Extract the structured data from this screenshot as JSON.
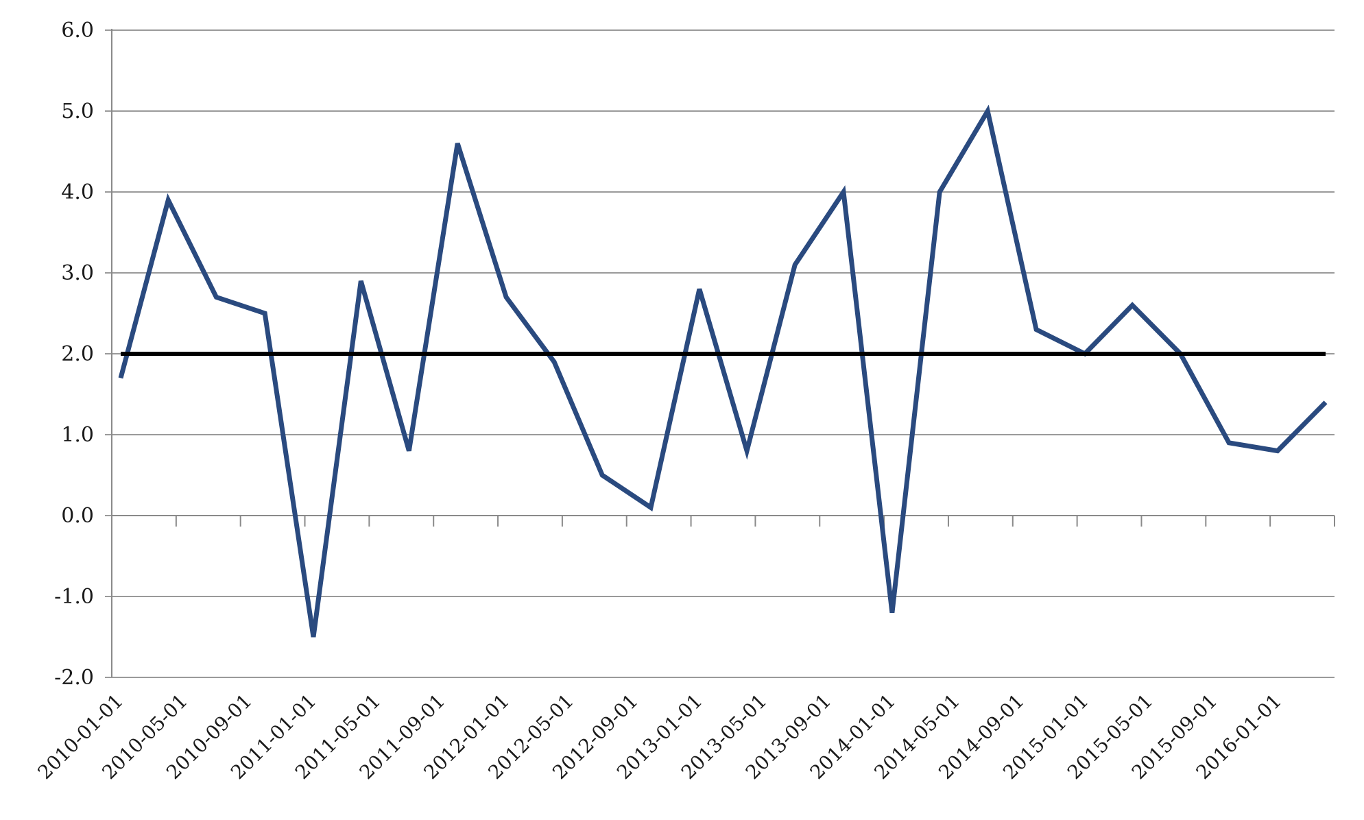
{
  "chart_data": {
    "type": "line",
    "title": "",
    "xlabel": "",
    "ylabel": "",
    "ylim": [
      -2.0,
      6.0
    ],
    "yticks": [
      "-2.0",
      "-1.0",
      "0.0",
      "1.0",
      "2.0",
      "3.0",
      "4.0",
      "5.0",
      "6.0"
    ],
    "x_tick_labels": [
      "2010-01-01",
      "2010-05-01",
      "2010-09-01",
      "2011-01-01",
      "2011-05-01",
      "2011-09-01",
      "2012-01-01",
      "2012-05-01",
      "2012-09-01",
      "2013-01-01",
      "2013-05-01",
      "2013-09-01",
      "2014-01-01",
      "2014-05-01",
      "2014-09-01",
      "2015-01-01",
      "2015-05-01",
      "2015-09-01",
      "2016-01-01"
    ],
    "grid": true,
    "legend": "none",
    "series": [
      {
        "color": "#2a4a7f",
        "x": [
          "2010-01-01",
          "2010-04-01",
          "2010-07-01",
          "2010-10-01",
          "2011-01-01",
          "2011-04-01",
          "2011-07-01",
          "2011-10-01",
          "2012-01-01",
          "2012-04-01",
          "2012-07-01",
          "2012-10-01",
          "2013-01-01",
          "2013-04-01",
          "2013-07-01",
          "2013-10-01",
          "2014-01-01",
          "2014-04-01",
          "2014-07-01",
          "2014-10-01",
          "2015-01-01",
          "2015-04-01",
          "2015-07-01",
          "2015-10-01",
          "2016-01-01",
          "2016-04-01"
        ],
        "values": [
          1.7,
          3.9,
          2.7,
          2.5,
          -1.5,
          2.9,
          0.8,
          4.6,
          2.7,
          1.9,
          0.5,
          0.1,
          2.8,
          0.8,
          3.1,
          4.0,
          -1.2,
          4.0,
          5.0,
          2.3,
          2.0,
          2.6,
          2.0,
          0.9,
          0.8,
          1.4
        ]
      },
      {
        "color": "#000000",
        "x": [
          "2010-01-01",
          "2016-04-01"
        ],
        "values": [
          2.0,
          2.0
        ]
      }
    ]
  }
}
